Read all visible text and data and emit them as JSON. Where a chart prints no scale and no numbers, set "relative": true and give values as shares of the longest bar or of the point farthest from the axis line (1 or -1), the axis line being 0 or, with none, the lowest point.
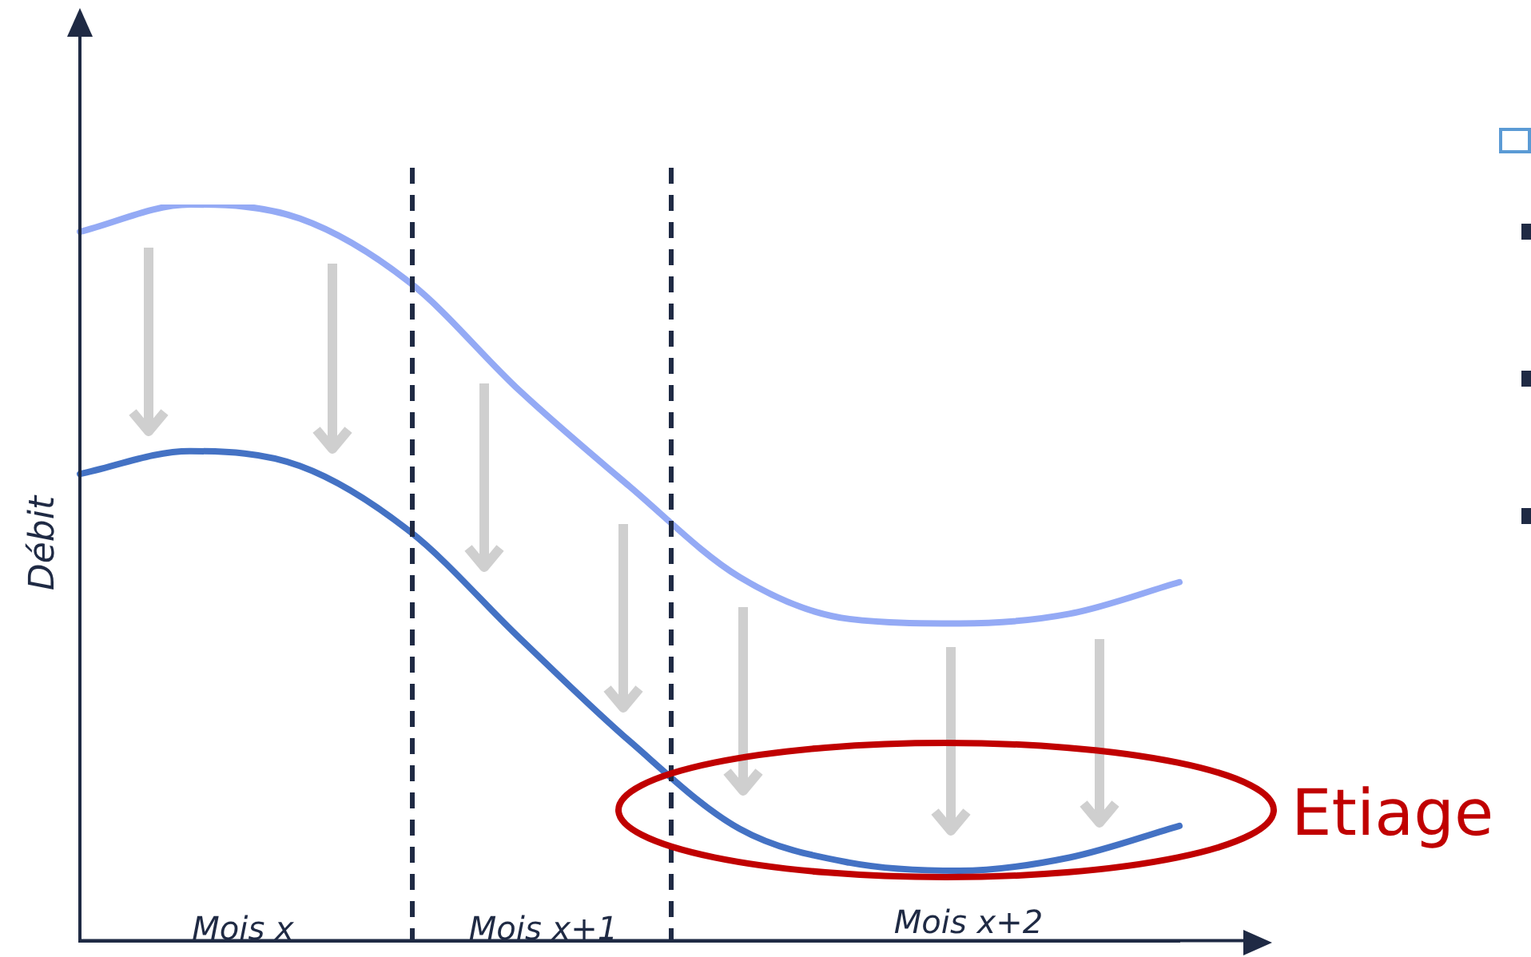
{
  "chart_data": {
    "type": "line",
    "relative": true,
    "ylabel": "Débit",
    "categories": [
      null,
      null,
      null,
      null,
      null,
      null,
      null,
      null,
      null,
      null,
      null
    ],
    "series": [
      {
        "color": "#94aaf5",
        "values": [
          0.963,
          1,
          0.981,
          0.894,
          0.747,
          0.617,
          0.494,
          0.437,
          0.431,
          0.444,
          0.487
        ]
      },
      {
        "color": "#4472c4",
        "values": [
          0.634,
          0.665,
          0.645,
          0.556,
          0.411,
          0.271,
          0.152,
          0.106,
          0.095,
          0.113,
          0.156
        ]
      }
    ],
    "annotations": [
      "Mois x",
      "Mois x+1",
      "Mois x+2",
      "Etiage"
    ],
    "grid": false,
    "legend": false,
    "marker": "none",
    "line_style": "solid"
  }
}
